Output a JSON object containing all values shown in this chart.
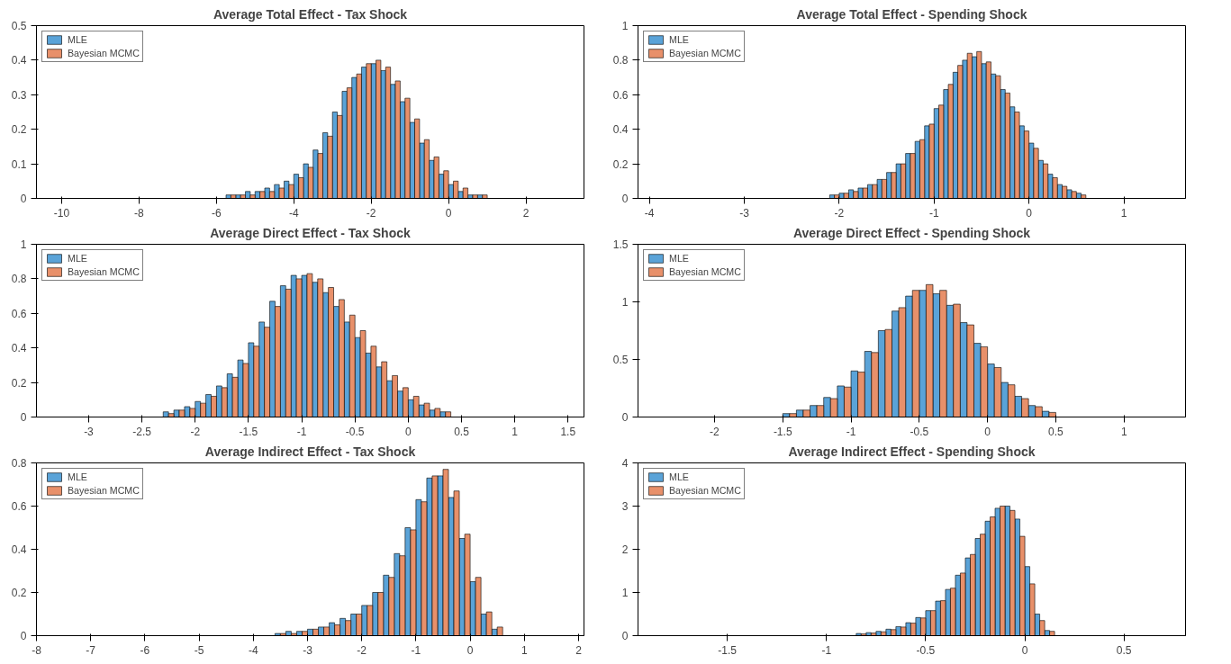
{
  "chart_data": [
    {
      "type": "histogram",
      "title": "Average Total Effect - Tax Shock",
      "xlim": [
        -10.65,
        3.5
      ],
      "xticks": [
        -10,
        -8,
        -6,
        -4,
        -2,
        0,
        2
      ],
      "ylim": [
        0,
        0.5
      ],
      "yticks": [
        0,
        0.1,
        0.2,
        0.3,
        0.4,
        0.5
      ],
      "grid": false,
      "legend": "top left",
      "bins": [
        -5.75,
        -5.5,
        -5.25,
        -5,
        -4.75,
        -4.5,
        -4.25,
        -4,
        -3.75,
        -3.5,
        -3.25,
        -3,
        -2.75,
        -2.5,
        -2.25,
        -2,
        -1.75,
        -1.5,
        -1.25,
        -1,
        -0.75,
        -0.5,
        -0.25,
        0,
        0.25,
        0.5,
        0.75,
        1
      ],
      "series": [
        {
          "name": "MLE",
          "color": "#5aa3d8",
          "values": [
            0.01,
            0.01,
            0.02,
            0.02,
            0.03,
            0.04,
            0.05,
            0.07,
            0.1,
            0.14,
            0.19,
            0.25,
            0.31,
            0.35,
            0.38,
            0.39,
            0.37,
            0.33,
            0.28,
            0.22,
            0.16,
            0.11,
            0.07,
            0.04,
            0.02,
            0.01,
            0.01
          ]
        },
        {
          "name": "Bayesian MCMC",
          "color": "#e8906a",
          "values": [
            0.01,
            0.01,
            0.01,
            0.02,
            0.02,
            0.03,
            0.04,
            0.06,
            0.09,
            0.13,
            0.18,
            0.24,
            0.32,
            0.36,
            0.39,
            0.4,
            0.38,
            0.34,
            0.29,
            0.23,
            0.17,
            0.12,
            0.08,
            0.05,
            0.03,
            0.01,
            0.01
          ]
        }
      ]
    },
    {
      "type": "histogram",
      "title": "Average Total Effect - Spending Shock",
      "xlim": [
        -4.12,
        1.65
      ],
      "xticks": [
        -4,
        -3,
        -2,
        -1,
        0,
        1
      ],
      "ylim": [
        0,
        1
      ],
      "yticks": [
        0,
        0.2,
        0.4,
        0.6,
        0.8,
        1
      ],
      "grid": false,
      "legend": "top left",
      "bins": [
        -2.1,
        -2,
        -1.9,
        -1.8,
        -1.7,
        -1.6,
        -1.5,
        -1.4,
        -1.3,
        -1.2,
        -1.1,
        -1,
        -0.9,
        -0.8,
        -0.7,
        -0.6,
        -0.5,
        -0.4,
        -0.3,
        -0.2,
        -0.1,
        0,
        0.1,
        0.2,
        0.3,
        0.4,
        0.5,
        0.6
      ],
      "series": [
        {
          "name": "MLE",
          "color": "#5aa3d8",
          "values": [
            0.02,
            0.03,
            0.05,
            0.06,
            0.08,
            0.11,
            0.15,
            0.2,
            0.26,
            0.33,
            0.42,
            0.52,
            0.63,
            0.73,
            0.8,
            0.82,
            0.78,
            0.72,
            0.63,
            0.53,
            0.42,
            0.32,
            0.22,
            0.14,
            0.08,
            0.05,
            0.03
          ]
        },
        {
          "name": "Bayesian MCMC",
          "color": "#e8906a",
          "values": [
            0.02,
            0.03,
            0.04,
            0.06,
            0.08,
            0.11,
            0.15,
            0.2,
            0.26,
            0.34,
            0.43,
            0.54,
            0.66,
            0.77,
            0.84,
            0.85,
            0.79,
            0.71,
            0.61,
            0.5,
            0.39,
            0.29,
            0.2,
            0.12,
            0.07,
            0.04,
            0.02
          ]
        }
      ]
    },
    {
      "type": "histogram",
      "title": "Average Direct Effect - Tax Shock",
      "xlim": [
        -3.49,
        1.65
      ],
      "xticks": [
        -3,
        -2.5,
        -2,
        -1.5,
        -1,
        -0.5,
        0,
        0.5,
        1,
        1.5
      ],
      "ylim": [
        0,
        1
      ],
      "yticks": [
        0,
        0.2,
        0.4,
        0.6,
        0.8,
        1
      ],
      "grid": false,
      "legend": "top left",
      "bins": [
        -2.3,
        -2.2,
        -2.1,
        -2,
        -1.9,
        -1.8,
        -1.7,
        -1.6,
        -1.5,
        -1.4,
        -1.3,
        -1.2,
        -1.1,
        -1,
        -0.9,
        -0.8,
        -0.7,
        -0.6,
        -0.5,
        -0.4,
        -0.3,
        -0.2,
        -0.1,
        0,
        0.1,
        0.2,
        0.3,
        0.4
      ],
      "series": [
        {
          "name": "MLE",
          "color": "#5aa3d8",
          "values": [
            0.03,
            0.04,
            0.06,
            0.09,
            0.13,
            0.18,
            0.25,
            0.33,
            0.43,
            0.55,
            0.67,
            0.76,
            0.82,
            0.82,
            0.78,
            0.72,
            0.64,
            0.55,
            0.46,
            0.37,
            0.29,
            0.21,
            0.15,
            0.1,
            0.07,
            0.04,
            0.03
          ]
        },
        {
          "name": "Bayesian MCMC",
          "color": "#e8906a",
          "values": [
            0.02,
            0.04,
            0.05,
            0.08,
            0.12,
            0.17,
            0.23,
            0.31,
            0.41,
            0.52,
            0.64,
            0.74,
            0.8,
            0.83,
            0.8,
            0.75,
            0.68,
            0.59,
            0.5,
            0.41,
            0.32,
            0.24,
            0.17,
            0.12,
            0.08,
            0.05,
            0.03
          ]
        }
      ]
    },
    {
      "type": "histogram",
      "title": "Average Direct Effect - Spending Shock",
      "xlim": [
        -2.56,
        1.45
      ],
      "xticks": [
        -2,
        -1.5,
        -1,
        -0.5,
        0,
        0.5,
        1
      ],
      "ylim": [
        0,
        1.5
      ],
      "yticks": [
        0,
        0.5,
        1,
        1.5
      ],
      "grid": false,
      "legend": "top left",
      "bins": [
        -1.5,
        -1.4,
        -1.3,
        -1.2,
        -1.1,
        -1,
        -0.9,
        -0.8,
        -0.7,
        -0.6,
        -0.5,
        -0.4,
        -0.3,
        -0.2,
        -0.1,
        0,
        0.1,
        0.2,
        0.3,
        0.4,
        0.5
      ],
      "series": [
        {
          "name": "MLE",
          "color": "#5aa3d8",
          "values": [
            0.03,
            0.06,
            0.1,
            0.17,
            0.27,
            0.4,
            0.57,
            0.75,
            0.92,
            1.05,
            1.1,
            1.07,
            0.97,
            0.82,
            0.64,
            0.46,
            0.3,
            0.18,
            0.1,
            0.05
          ]
        },
        {
          "name": "Bayesian MCMC",
          "color": "#e8906a",
          "values": [
            0.03,
            0.06,
            0.1,
            0.16,
            0.26,
            0.39,
            0.56,
            0.76,
            0.95,
            1.1,
            1.15,
            1.1,
            0.98,
            0.8,
            0.61,
            0.43,
            0.28,
            0.16,
            0.09,
            0.04
          ]
        }
      ]
    },
    {
      "type": "histogram",
      "title": "Average Indirect Effect - Tax Shock",
      "xlim": [
        -8,
        2.1
      ],
      "xticks": [
        -8,
        -7,
        -6,
        -5,
        -4,
        -3,
        -2,
        -1,
        0,
        1,
        2
      ],
      "ylim": [
        0,
        0.8
      ],
      "yticks": [
        0,
        0.2,
        0.4,
        0.6,
        0.8
      ],
      "grid": false,
      "legend": "top left",
      "bins": [
        -3.6,
        -3.4,
        -3.2,
        -3,
        -2.8,
        -2.6,
        -2.4,
        -2.2,
        -2,
        -1.8,
        -1.6,
        -1.4,
        -1.2,
        -1,
        -0.8,
        -0.6,
        -0.4,
        -0.2,
        0,
        0.2,
        0.4,
        0.6
      ],
      "series": [
        {
          "name": "MLE",
          "color": "#5aa3d8",
          "values": [
            0.01,
            0.02,
            0.02,
            0.03,
            0.04,
            0.06,
            0.08,
            0.1,
            0.14,
            0.2,
            0.28,
            0.38,
            0.5,
            0.63,
            0.73,
            0.74,
            0.64,
            0.45,
            0.25,
            0.1,
            0.03
          ]
        },
        {
          "name": "Bayesian MCMC",
          "color": "#e8906a",
          "values": [
            0.01,
            0.01,
            0.02,
            0.03,
            0.04,
            0.05,
            0.07,
            0.1,
            0.14,
            0.2,
            0.27,
            0.37,
            0.49,
            0.62,
            0.74,
            0.77,
            0.67,
            0.47,
            0.27,
            0.11,
            0.04
          ]
        }
      ]
    },
    {
      "type": "histogram",
      "title": "Average Indirect Effect - Spending Shock",
      "xlim": [
        -1.95,
        0.81
      ],
      "xticks": [
        -1.5,
        -1,
        -0.5,
        0,
        0.5
      ],
      "ylim": [
        0,
        4
      ],
      "yticks": [
        0,
        1,
        2,
        3,
        4
      ],
      "grid": false,
      "legend": "top left",
      "bins": [
        -0.85,
        -0.8,
        -0.75,
        -0.7,
        -0.65,
        -0.6,
        -0.55,
        -0.5,
        -0.45,
        -0.4,
        -0.35,
        -0.3,
        -0.25,
        -0.2,
        -0.15,
        -0.1,
        -0.05,
        0,
        0.05,
        0.1,
        0.15
      ],
      "series": [
        {
          "name": "MLE",
          "color": "#5aa3d8",
          "values": [
            0.05,
            0.07,
            0.1,
            0.15,
            0.21,
            0.3,
            0.42,
            0.58,
            0.8,
            1.07,
            1.4,
            1.8,
            2.25,
            2.65,
            2.95,
            3.0,
            2.7,
            1.6,
            0.5,
            0.12
          ]
        },
        {
          "name": "Bayesian MCMC",
          "color": "#e8906a",
          "values": [
            0.04,
            0.06,
            0.09,
            0.14,
            0.2,
            0.29,
            0.41,
            0.58,
            0.81,
            1.1,
            1.45,
            1.88,
            2.35,
            2.75,
            3.0,
            2.9,
            2.3,
            1.2,
            0.35,
            0.1
          ]
        }
      ]
    }
  ]
}
